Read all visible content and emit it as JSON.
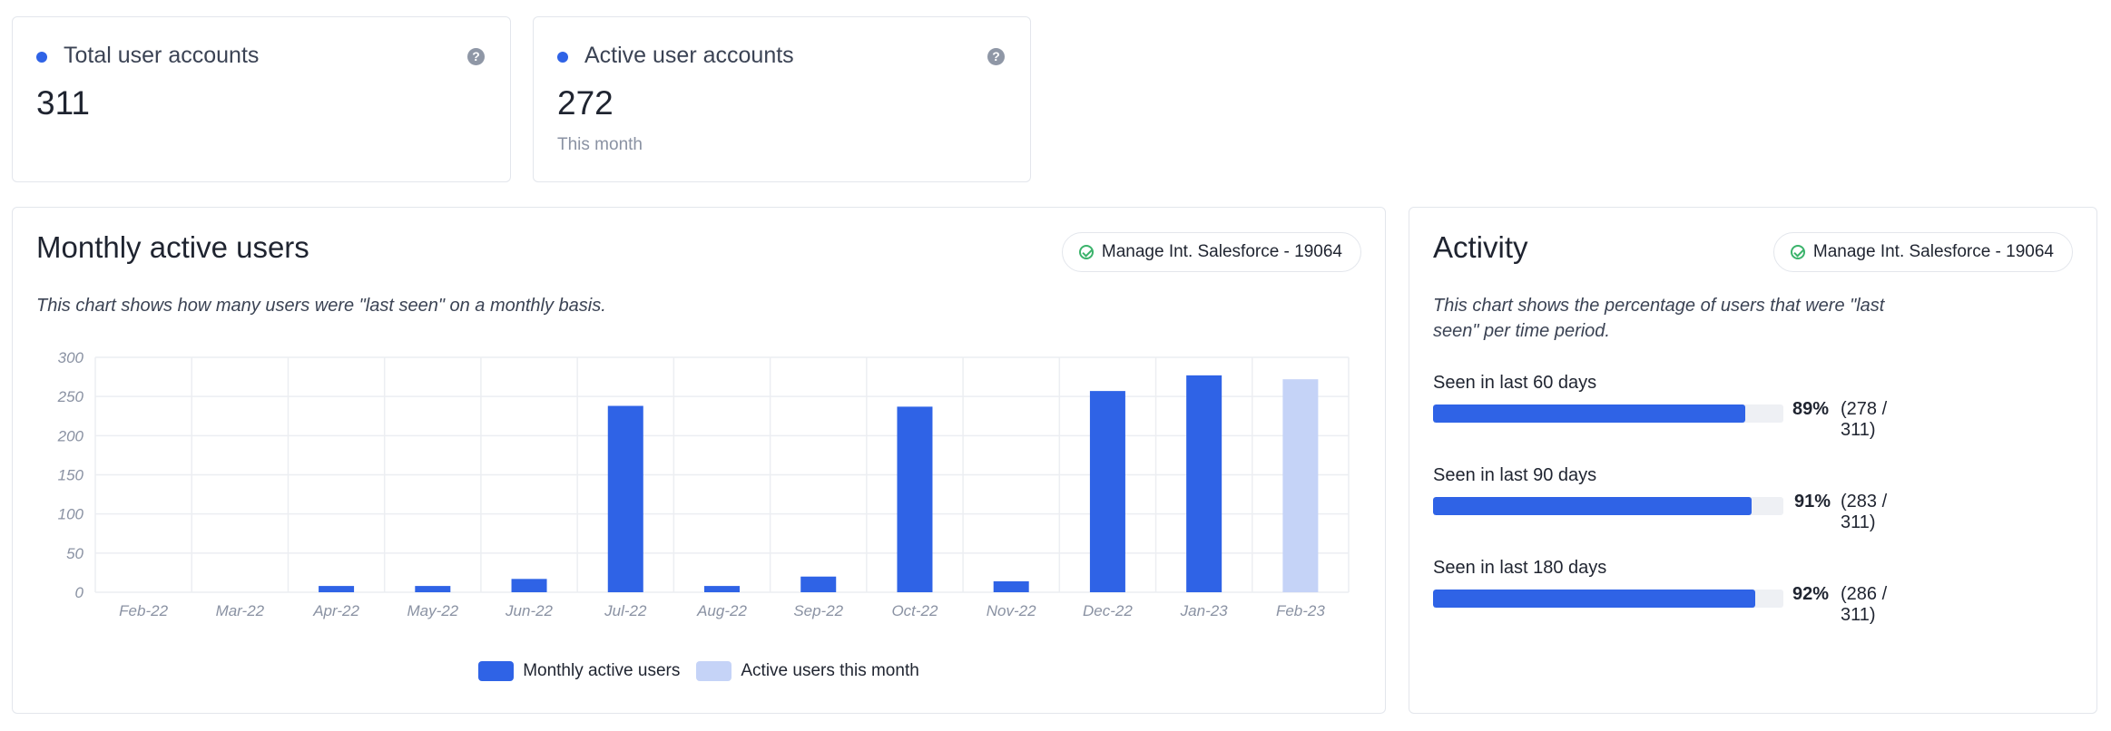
{
  "stats": [
    {
      "title": "Total user accounts",
      "value": "311",
      "sub": ""
    },
    {
      "title": "Active user accounts",
      "value": "272",
      "sub": "This month"
    }
  ],
  "help_icon_glyph": "?",
  "mau_panel": {
    "title": "Monthly active users",
    "pill": "Manage Int. Salesforce - 19064",
    "description": "This chart shows how many users were \"last seen\" on a monthly basis."
  },
  "activity_panel": {
    "title": "Activity",
    "pill": "Manage Int. Salesforce - 19064",
    "description_line1": "This chart shows the percentage of users that were \"last",
    "description_line2": "seen\" per time period.",
    "rows": [
      {
        "label": "Seen in last 60 days",
        "percent": 89,
        "pct_label": "89%",
        "count_label": "(278 / 311)"
      },
      {
        "label": "Seen in last 90 days",
        "percent": 91,
        "pct_label": "91%",
        "count_label": "(283 / 311)"
      },
      {
        "label": "Seen in last 180 days",
        "percent": 92,
        "pct_label": "92%",
        "count_label": "(286 / 311)"
      }
    ]
  },
  "colors": {
    "accent": "#2f63e6",
    "current_month": "#c5d3f7",
    "grid": "#eceef2"
  },
  "chart_data": {
    "type": "bar",
    "categories": [
      "Feb-22",
      "Mar-22",
      "Apr-22",
      "May-22",
      "Jun-22",
      "Jul-22",
      "Aug-22",
      "Sep-22",
      "Oct-22",
      "Nov-22",
      "Dec-22",
      "Jan-23",
      "Feb-23"
    ],
    "series": [
      {
        "name": "Monthly active users",
        "values": [
          0,
          0,
          8,
          8,
          17,
          238,
          8,
          20,
          237,
          14,
          257,
          277,
          null
        ]
      },
      {
        "name": "Active users this month",
        "values": [
          null,
          null,
          null,
          null,
          null,
          null,
          null,
          null,
          null,
          null,
          null,
          null,
          272
        ]
      }
    ],
    "yticks": [
      0,
      50,
      100,
      150,
      200,
      250,
      300
    ],
    "ylim": [
      0,
      300
    ],
    "grid": true,
    "legend_position": "bottom"
  }
}
